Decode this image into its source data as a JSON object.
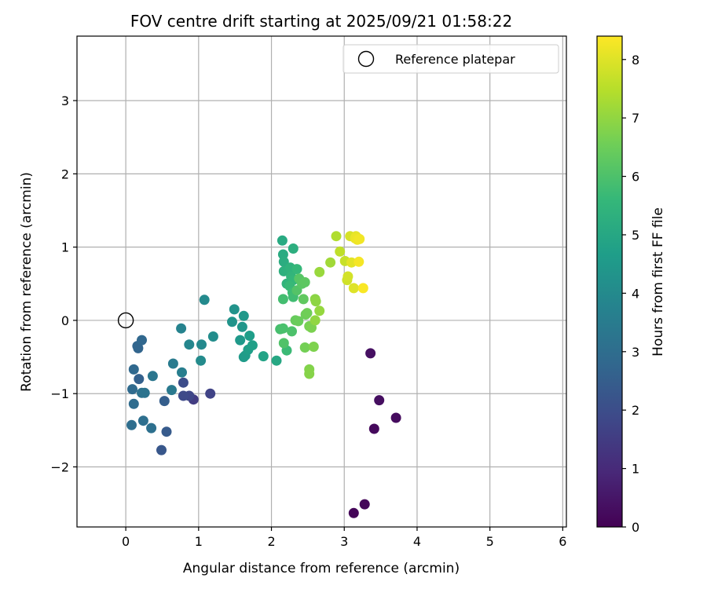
{
  "chart_data": {
    "type": "scatter",
    "title": "FOV centre drift starting at 2025/09/21 01:58:22",
    "xlabel": "Angular distance from reference (arcmin)",
    "ylabel": "Rotation from reference (arcmin)",
    "xlim": [
      -0.67,
      6.05
    ],
    "ylim": [
      -2.82,
      3.88
    ],
    "xticks": [
      0,
      1,
      2,
      3,
      4,
      5,
      6
    ],
    "yticks": [
      -2,
      -1,
      0,
      1,
      2,
      3
    ],
    "grid": true,
    "legend": {
      "location": "top-right",
      "entries": [
        "Reference platepar"
      ]
    },
    "reference_point": {
      "x": 0,
      "y": 0,
      "label": "Reference platepar"
    },
    "colorbar": {
      "label": "Hours from first FF file",
      "min": 0,
      "max": 8.4,
      "ticks": [
        0,
        1,
        2,
        3,
        4,
        5,
        6,
        7,
        8
      ],
      "colormap": "viridis"
    },
    "points": [
      {
        "x": 3.13,
        "y": -2.63,
        "hours": 0.1
      },
      {
        "x": 3.28,
        "y": -2.51,
        "hours": 0.15
      },
      {
        "x": 3.41,
        "y": -1.48,
        "hours": 0.2
      },
      {
        "x": 3.71,
        "y": -1.33,
        "hours": 0.25
      },
      {
        "x": 3.48,
        "y": -1.09,
        "hours": 0.3
      },
      {
        "x": 3.36,
        "y": -0.45,
        "hours": 0.35
      },
      {
        "x": 0.93,
        "y": -1.08,
        "hours": 1.5
      },
      {
        "x": 1.16,
        "y": -1.0,
        "hours": 1.7
      },
      {
        "x": 0.87,
        "y": -1.03,
        "hours": 1.8
      },
      {
        "x": 0.79,
        "y": -1.03,
        "hours": 1.9
      },
      {
        "x": 0.79,
        "y": -0.85,
        "hours": 2.0
      },
      {
        "x": 0.49,
        "y": -1.77,
        "hours": 2.3
      },
      {
        "x": 0.56,
        "y": -1.52,
        "hours": 2.4
      },
      {
        "x": 0.53,
        "y": -1.1,
        "hours": 2.5
      },
      {
        "x": 0.18,
        "y": -0.8,
        "hours": 2.6
      },
      {
        "x": 0.17,
        "y": -0.38,
        "hours": 2.7
      },
      {
        "x": 0.16,
        "y": -0.35,
        "hours": 2.75
      },
      {
        "x": 0.22,
        "y": -0.27,
        "hours": 2.8
      },
      {
        "x": 0.11,
        "y": -0.67,
        "hours": 2.85
      },
      {
        "x": 0.09,
        "y": -0.94,
        "hours": 2.9
      },
      {
        "x": 0.11,
        "y": -1.14,
        "hours": 2.95
      },
      {
        "x": 0.08,
        "y": -1.43,
        "hours": 3.0
      },
      {
        "x": 0.24,
        "y": -1.37,
        "hours": 3.05
      },
      {
        "x": 0.35,
        "y": -1.47,
        "hours": 3.1
      },
      {
        "x": 0.22,
        "y": -0.99,
        "hours": 3.15
      },
      {
        "x": 0.26,
        "y": -0.99,
        "hours": 3.2
      },
      {
        "x": 0.37,
        "y": -0.76,
        "hours": 3.3
      },
      {
        "x": 0.63,
        "y": -0.95,
        "hours": 3.4
      },
      {
        "x": 0.65,
        "y": -0.59,
        "hours": 3.5
      },
      {
        "x": 0.77,
        "y": -0.71,
        "hours": 3.6
      },
      {
        "x": 0.76,
        "y": -0.11,
        "hours": 3.75
      },
      {
        "x": 0.87,
        "y": -0.33,
        "hours": 3.85
      },
      {
        "x": 1.04,
        "y": -0.33,
        "hours": 3.95
      },
      {
        "x": 1.08,
        "y": 0.28,
        "hours": 4.0
      },
      {
        "x": 1.03,
        "y": -0.55,
        "hours": 4.05
      },
      {
        "x": 1.2,
        "y": -0.22,
        "hours": 4.1
      },
      {
        "x": 1.49,
        "y": 0.15,
        "hours": 4.3
      },
      {
        "x": 1.46,
        "y": -0.02,
        "hours": 4.35
      },
      {
        "x": 1.6,
        "y": -0.09,
        "hours": 4.4
      },
      {
        "x": 1.62,
        "y": 0.06,
        "hours": 4.45
      },
      {
        "x": 1.57,
        "y": -0.27,
        "hours": 4.5
      },
      {
        "x": 1.62,
        "y": -0.5,
        "hours": 4.55
      },
      {
        "x": 1.64,
        "y": -0.48,
        "hours": 4.6
      },
      {
        "x": 1.7,
        "y": -0.21,
        "hours": 4.65
      },
      {
        "x": 1.68,
        "y": -0.4,
        "hours": 4.7
      },
      {
        "x": 1.74,
        "y": -0.34,
        "hours": 4.75
      },
      {
        "x": 1.89,
        "y": -0.49,
        "hours": 4.85
      },
      {
        "x": 2.07,
        "y": -0.55,
        "hours": 5.0
      },
      {
        "x": 2.15,
        "y": 1.09,
        "hours": 5.1
      },
      {
        "x": 2.16,
        "y": 0.9,
        "hours": 5.15
      },
      {
        "x": 2.17,
        "y": 0.8,
        "hours": 5.2
      },
      {
        "x": 2.3,
        "y": 0.98,
        "hours": 5.25
      },
      {
        "x": 2.17,
        "y": 0.67,
        "hours": 5.3
      },
      {
        "x": 2.23,
        "y": 0.68,
        "hours": 5.35
      },
      {
        "x": 2.26,
        "y": 0.72,
        "hours": 5.4
      },
      {
        "x": 2.21,
        "y": 0.5,
        "hours": 5.45
      },
      {
        "x": 2.27,
        "y": 0.6,
        "hours": 5.5
      },
      {
        "x": 2.3,
        "y": 0.55,
        "hours": 5.55
      },
      {
        "x": 2.35,
        "y": 0.7,
        "hours": 5.6
      },
      {
        "x": 2.25,
        "y": 0.47,
        "hours": 5.65
      },
      {
        "x": 2.21,
        "y": -0.41,
        "hours": 5.7
      },
      {
        "x": 2.29,
        "y": 0.38,
        "hours": 5.75
      },
      {
        "x": 2.3,
        "y": 0.32,
        "hours": 5.8
      },
      {
        "x": 2.16,
        "y": 0.29,
        "hours": 5.85
      },
      {
        "x": 2.12,
        "y": -0.12,
        "hours": 5.9
      },
      {
        "x": 2.16,
        "y": -0.11,
        "hours": 5.95
      },
      {
        "x": 2.28,
        "y": -0.15,
        "hours": 6.0
      },
      {
        "x": 2.17,
        "y": -0.31,
        "hours": 6.05
      },
      {
        "x": 2.35,
        "y": 0.41,
        "hours": 6.1
      },
      {
        "x": 2.38,
        "y": 0.57,
        "hours": 6.15
      },
      {
        "x": 2.42,
        "y": 0.5,
        "hours": 6.2
      },
      {
        "x": 2.46,
        "y": 0.52,
        "hours": 6.25
      },
      {
        "x": 2.44,
        "y": 0.29,
        "hours": 6.3
      },
      {
        "x": 2.33,
        "y": 0.0,
        "hours": 6.4
      },
      {
        "x": 2.37,
        "y": -0.01,
        "hours": 6.45
      },
      {
        "x": 2.47,
        "y": 0.08,
        "hours": 6.5
      },
      {
        "x": 2.49,
        "y": 0.1,
        "hours": 6.55
      },
      {
        "x": 2.46,
        "y": -0.37,
        "hours": 6.6
      },
      {
        "x": 2.52,
        "y": -0.08,
        "hours": 6.65
      },
      {
        "x": 2.55,
        "y": -0.1,
        "hours": 6.7
      },
      {
        "x": 2.58,
        "y": -0.36,
        "hours": 6.75
      },
      {
        "x": 2.52,
        "y": -0.67,
        "hours": 6.8
      },
      {
        "x": 2.52,
        "y": -0.73,
        "hours": 6.85
      },
      {
        "x": 2.6,
        "y": 0.29,
        "hours": 6.9
      },
      {
        "x": 2.61,
        "y": 0.26,
        "hours": 6.95
      },
      {
        "x": 2.6,
        "y": 0.0,
        "hours": 7.0
      },
      {
        "x": 2.66,
        "y": 0.13,
        "hours": 7.05
      },
      {
        "x": 2.66,
        "y": 0.66,
        "hours": 7.1
      },
      {
        "x": 2.81,
        "y": 0.79,
        "hours": 7.2
      },
      {
        "x": 2.89,
        "y": 1.15,
        "hours": 7.4
      },
      {
        "x": 2.94,
        "y": 0.94,
        "hours": 7.6
      },
      {
        "x": 3.01,
        "y": 0.81,
        "hours": 7.7
      },
      {
        "x": 3.04,
        "y": 0.55,
        "hours": 7.8
      },
      {
        "x": 3.05,
        "y": 0.6,
        "hours": 7.85
      },
      {
        "x": 3.08,
        "y": 1.15,
        "hours": 7.9
      },
      {
        "x": 3.13,
        "y": 0.44,
        "hours": 8.0
      },
      {
        "x": 3.1,
        "y": 0.79,
        "hours": 8.05
      },
      {
        "x": 3.16,
        "y": 1.15,
        "hours": 8.1
      },
      {
        "x": 3.15,
        "y": 1.12,
        "hours": 8.15
      },
      {
        "x": 3.18,
        "y": 1.1,
        "hours": 8.2
      },
      {
        "x": 3.21,
        "y": 1.11,
        "hours": 8.25
      },
      {
        "x": 3.2,
        "y": 0.8,
        "hours": 8.3
      },
      {
        "x": 3.26,
        "y": 0.44,
        "hours": 8.35
      }
    ]
  }
}
